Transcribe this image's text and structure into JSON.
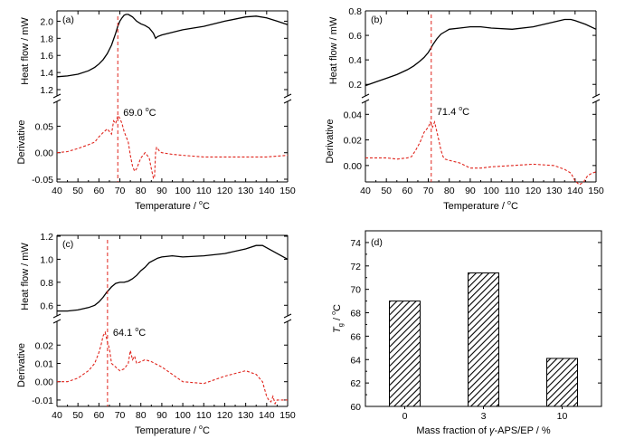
{
  "chart_data": [
    {
      "id": "a",
      "type": "line",
      "panel_label": "(a)",
      "xlabel": "Temperature / ",
      "x_unit_deg": "o",
      "x_unit": "C",
      "xlim": [
        40,
        150
      ],
      "x_ticks": [
        "40",
        "50",
        "60",
        "70",
        "80",
        "90",
        "100",
        "110",
        "120",
        "130",
        "140",
        "150"
      ],
      "top": {
        "ylabel": "Heat flow / mW",
        "ylim": [
          1.2,
          2.1
        ],
        "y_ticks": [
          1.2,
          1.4,
          1.6,
          1.8,
          2.0
        ],
        "y_tick_labels": [
          "1.2",
          "1.4",
          "1.6",
          "1.8",
          "2.0"
        ],
        "x": [
          40,
          45,
          50,
          55,
          58,
          60,
          62,
          64,
          66,
          68,
          69,
          70,
          71,
          72,
          73,
          74,
          76,
          78,
          80,
          82,
          84,
          86,
          87,
          88,
          90,
          95,
          100,
          110,
          120,
          130,
          135,
          140,
          145,
          150
        ],
        "y": [
          1.35,
          1.36,
          1.38,
          1.42,
          1.46,
          1.5,
          1.55,
          1.62,
          1.72,
          1.86,
          1.94,
          2.0,
          2.04,
          2.07,
          2.08,
          2.08,
          2.05,
          2.0,
          1.97,
          1.95,
          1.92,
          1.86,
          1.8,
          1.82,
          1.84,
          1.87,
          1.9,
          1.94,
          2.0,
          2.05,
          2.06,
          2.04,
          2.0,
          1.96
        ]
      },
      "bottom": {
        "ylabel": "Derivative",
        "ylim": [
          -0.05,
          0.09
        ],
        "y_ticks": [
          -0.05,
          0.0,
          0.05
        ],
        "y_tick_labels": [
          "-0.05",
          "0.00",
          "0.05"
        ],
        "x": [
          40,
          45,
          50,
          55,
          58,
          60,
          62,
          64,
          65,
          66,
          67,
          68,
          69,
          70,
          71,
          72,
          73,
          74,
          75,
          76,
          77,
          78,
          79,
          80,
          82,
          84,
          85,
          86,
          86.5,
          87,
          87.5,
          88,
          89,
          90,
          95,
          100,
          110,
          120,
          130,
          140,
          150
        ],
        "y": [
          0.0,
          0.002,
          0.008,
          0.015,
          0.02,
          0.03,
          0.038,
          0.045,
          0.04,
          0.035,
          0.06,
          0.055,
          0.07,
          0.065,
          0.055,
          0.04,
          0.03,
          0.02,
          -0.005,
          -0.025,
          -0.035,
          -0.03,
          -0.02,
          -0.01,
          0.0,
          -0.01,
          -0.03,
          -0.048,
          -0.048,
          0.0,
          0.01,
          0.008,
          0.002,
          0.0,
          -0.003,
          -0.005,
          -0.008,
          -0.008,
          -0.008,
          -0.008,
          -0.005
        ]
      },
      "peak": {
        "x": 69.0,
        "label": "69.0 ",
        "deg": "o",
        "unit": "C"
      }
    },
    {
      "id": "b",
      "type": "line",
      "panel_label": "(b)",
      "xlabel": "Temperature / ",
      "x_unit_deg": "o",
      "x_unit": "C",
      "xlim": [
        40,
        150
      ],
      "x_ticks": [
        "40",
        "50",
        "60",
        "70",
        "80",
        "90",
        "100",
        "110",
        "120",
        "130",
        "140",
        "150"
      ],
      "top": {
        "ylabel": "Heat flow / mW",
        "ylim": [
          0.15,
          0.8
        ],
        "y_ticks": [
          0.2,
          0.4,
          0.6,
          0.8
        ],
        "y_tick_labels": [
          "0.2",
          "0.4",
          "0.6",
          "0.8"
        ],
        "x": [
          40,
          45,
          50,
          55,
          60,
          63,
          66,
          68,
          70,
          71.4,
          72,
          74,
          76,
          78,
          80,
          85,
          90,
          95,
          100,
          110,
          120,
          130,
          135,
          138,
          140,
          145,
          150
        ],
        "y": [
          0.19,
          0.22,
          0.25,
          0.28,
          0.32,
          0.35,
          0.39,
          0.42,
          0.46,
          0.5,
          0.52,
          0.57,
          0.61,
          0.63,
          0.65,
          0.66,
          0.67,
          0.67,
          0.66,
          0.65,
          0.67,
          0.71,
          0.73,
          0.73,
          0.72,
          0.69,
          0.65
        ]
      },
      "bottom": {
        "ylabel": "Derivative",
        "ylim": [
          -0.01,
          0.048
        ],
        "y_ticks": [
          0.0,
          0.02,
          0.04
        ],
        "y_tick_labels": [
          "0.00",
          "0.02",
          "0.04"
        ],
        "x": [
          40,
          45,
          50,
          55,
          60,
          62,
          64,
          66,
          67,
          68,
          69,
          70,
          71,
          72,
          73,
          74,
          75,
          76,
          77,
          78,
          80,
          85,
          90,
          95,
          100,
          110,
          120,
          130,
          135,
          138,
          140,
          142,
          144,
          146,
          148,
          150
        ],
        "y": [
          0.006,
          0.006,
          0.006,
          0.005,
          0.006,
          0.007,
          0.012,
          0.018,
          0.022,
          0.026,
          0.028,
          0.03,
          0.034,
          0.03,
          0.034,
          0.027,
          0.02,
          0.012,
          0.007,
          0.005,
          0.004,
          0.002,
          -0.002,
          -0.002,
          -0.001,
          0.0,
          0.001,
          0.0,
          -0.003,
          -0.006,
          -0.012,
          -0.015,
          -0.013,
          -0.008,
          -0.006,
          -0.005
        ]
      },
      "peak": {
        "x": 71.4,
        "label": "71.4 ",
        "deg": "o",
        "unit": "C"
      }
    },
    {
      "id": "c",
      "type": "line",
      "panel_label": "(c)",
      "xlabel": "Temperature / ",
      "x_unit_deg": "o",
      "x_unit": "C",
      "xlim": [
        40,
        150
      ],
      "x_ticks": [
        "40",
        "50",
        "60",
        "70",
        "80",
        "90",
        "100",
        "110",
        "120",
        "130",
        "140",
        "150"
      ],
      "top": {
        "ylabel": "Heat flow / mW",
        "ylim": [
          0.5,
          1.2
        ],
        "y_ticks": [
          0.6,
          0.8,
          1.0,
          1.2
        ],
        "y_tick_labels": [
          "0.6",
          "0.8",
          "1.0",
          "1.2"
        ],
        "x": [
          40,
          45,
          50,
          55,
          58,
          60,
          62,
          64,
          64.1,
          66,
          68,
          70,
          72,
          74,
          76,
          78,
          80,
          82,
          84,
          86,
          88,
          90,
          95,
          100,
          110,
          120,
          130,
          135,
          138,
          140,
          145,
          150
        ],
        "y": [
          0.55,
          0.55,
          0.56,
          0.58,
          0.6,
          0.63,
          0.67,
          0.72,
          0.72,
          0.76,
          0.79,
          0.8,
          0.8,
          0.81,
          0.83,
          0.86,
          0.9,
          0.93,
          0.97,
          0.99,
          1.01,
          1.02,
          1.03,
          1.02,
          1.03,
          1.05,
          1.09,
          1.12,
          1.12,
          1.1,
          1.05,
          1.0
        ]
      },
      "bottom": {
        "ylabel": "Derivative",
        "ylim": [
          -0.013,
          0.031
        ],
        "y_ticks": [
          -0.01,
          0.0,
          0.01,
          0.02
        ],
        "y_tick_labels": [
          "-0.01",
          "0.00",
          "0.01",
          "0.02"
        ],
        "x": [
          40,
          45,
          50,
          55,
          58,
          60,
          61,
          62,
          63,
          64,
          65,
          66,
          68,
          70,
          72,
          74,
          75,
          76,
          77,
          78,
          80,
          82,
          85,
          90,
          95,
          100,
          110,
          120,
          130,
          135,
          138,
          140,
          141,
          142,
          143,
          144,
          145,
          146,
          148,
          150
        ],
        "y": [
          0.0,
          0.0,
          0.002,
          0.006,
          0.01,
          0.016,
          0.02,
          0.025,
          0.027,
          0.022,
          0.018,
          0.01,
          0.008,
          0.006,
          0.007,
          0.01,
          0.017,
          0.012,
          0.014,
          0.01,
          0.011,
          0.012,
          0.011,
          0.008,
          0.004,
          0.0,
          -0.001,
          0.003,
          0.006,
          0.004,
          0.0,
          -0.008,
          -0.01,
          -0.011,
          -0.008,
          -0.012,
          -0.01,
          -0.01,
          -0.01,
          -0.01
        ]
      },
      "peak": {
        "x": 64.1,
        "label": "64.1 ",
        "deg": "o",
        "unit": "C"
      }
    },
    {
      "id": "d",
      "type": "bar",
      "panel_label": "(d)",
      "categories": [
        "0",
        "3",
        "10"
      ],
      "values": [
        69.0,
        71.4,
        64.1
      ],
      "ylim": [
        60,
        75
      ],
      "y_ticks": [
        "60",
        "62",
        "64",
        "66",
        "68",
        "70",
        "72",
        "74"
      ],
      "ylabel_main": "T",
      "ylabel_sub": "g",
      "ylabel_unit": " / ",
      "ylabel_deg": "o",
      "ylabel_c": "C",
      "xlabel_pre": "Mass fraction of ",
      "xlabel_gamma": "γ",
      "xlabel_post": "-APS/EP / %"
    }
  ]
}
